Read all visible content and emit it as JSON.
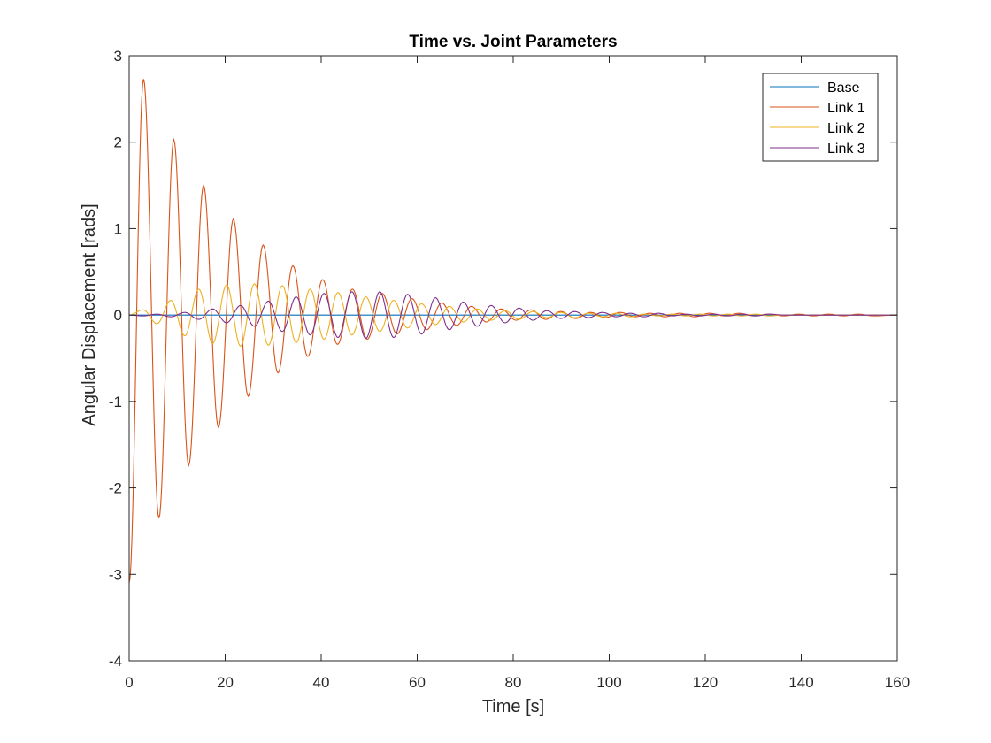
{
  "chart_data": {
    "type": "line",
    "title": "Time vs. Joint Parameters",
    "xlabel": "Time [s]",
    "ylabel": "Angular Displacement [rads]",
    "xlim": [
      0,
      160
    ],
    "ylim": [
      -4,
      3
    ],
    "xticks": [
      0,
      20,
      40,
      60,
      80,
      100,
      120,
      140,
      160
    ],
    "yticks": [
      -4,
      -3,
      -2,
      -1,
      0,
      1,
      2,
      3
    ],
    "grid": false,
    "legend_position": "top-right",
    "series": [
      {
        "name": "Base",
        "color": "#0072BD",
        "x": [
          0,
          160
        ],
        "y": [
          0,
          0
        ]
      },
      {
        "name": "Link 1",
        "color": "#D95319",
        "x": [
          0,
          3.0,
          6.2,
          9.3,
          12.4,
          15.5,
          18.6,
          21.7,
          24.8,
          27.9,
          31.0,
          34.1,
          37.2,
          40.3,
          43.4,
          46.5,
          49.6,
          52.7,
          55.8,
          58.9,
          62.0,
          65.1,
          68.2,
          71.3,
          74.4,
          77.5,
          80.6,
          83.7,
          86.8,
          89.9,
          93.0,
          96.1,
          99.2,
          102.3,
          105.4,
          108.5,
          111.6,
          114.7,
          117.8,
          120.9,
          124.0,
          127.1,
          130.2,
          133.3,
          136.4,
          139.5,
          142.6,
          145.7,
          148.8,
          151.9,
          155.0,
          160.0
        ],
        "y": [
          -3.1,
          2.73,
          -2.35,
          2.03,
          -1.74,
          1.5,
          -1.3,
          1.11,
          -0.94,
          0.81,
          -0.67,
          0.57,
          -0.48,
          0.41,
          -0.34,
          0.3,
          -0.28,
          0.25,
          -0.22,
          0.19,
          -0.17,
          0.14,
          -0.12,
          0.1,
          -0.08,
          0.07,
          -0.06,
          0.06,
          -0.05,
          0.04,
          -0.04,
          0.03,
          -0.03,
          0.03,
          -0.02,
          0.02,
          -0.02,
          0.02,
          -0.02,
          0.02,
          -0.01,
          0.02,
          -0.01,
          0.01,
          -0.01,
          0.01,
          -0.01,
          0.01,
          -0.01,
          0.01,
          -0.01,
          0.0
        ]
      },
      {
        "name": "Link 2",
        "color": "#EDB120",
        "x": [
          0,
          2.9,
          5.8,
          8.7,
          11.6,
          14.5,
          17.4,
          20.3,
          23.2,
          26.1,
          29.0,
          31.9,
          34.8,
          37.7,
          40.6,
          43.5,
          46.4,
          49.3,
          52.2,
          55.1,
          58.0,
          60.9,
          63.8,
          66.7,
          69.6,
          72.5,
          75.4,
          78.3,
          81.2,
          84.1,
          87.0,
          89.9,
          92.8,
          95.7,
          98.6,
          101.5,
          104.4,
          107.3,
          110.2,
          113.1,
          116.0,
          118.9,
          121.8,
          124.7,
          127.6,
          130.5,
          133.4,
          136.3,
          139.2,
          142.1,
          145.0,
          147.9,
          150.8,
          153.7,
          160.0
        ],
        "y": [
          0,
          0.06,
          -0.1,
          0.17,
          -0.24,
          0.3,
          -0.33,
          0.35,
          -0.36,
          0.36,
          -0.35,
          0.34,
          -0.32,
          0.3,
          -0.28,
          0.26,
          -0.23,
          0.21,
          -0.19,
          0.17,
          -0.15,
          0.13,
          -0.11,
          0.1,
          -0.08,
          0.07,
          -0.06,
          0.05,
          -0.05,
          0.04,
          -0.03,
          0.03,
          -0.03,
          0.02,
          -0.02,
          0.02,
          -0.02,
          0.01,
          -0.01,
          0.01,
          -0.01,
          0.01,
          -0.01,
          0.01,
          -0.01,
          0.01,
          -0.01,
          0.0,
          0.0,
          0.0,
          0.0,
          0.0,
          0.0,
          0.0,
          0.0
        ]
      },
      {
        "name": "Link 3",
        "color": "#7E2F8E",
        "x": [
          0,
          2.9,
          5.8,
          8.7,
          11.6,
          14.5,
          17.4,
          20.3,
          23.2,
          26.1,
          29.0,
          31.9,
          34.8,
          37.7,
          40.6,
          43.5,
          46.4,
          49.3,
          52.2,
          55.1,
          58.0,
          60.9,
          63.8,
          66.7,
          69.6,
          72.5,
          75.4,
          78.3,
          81.2,
          84.1,
          87.0,
          89.9,
          92.8,
          95.7,
          98.6,
          101.5,
          104.4,
          107.3,
          110.2,
          113.1,
          116.0,
          118.9,
          121.8,
          124.7,
          127.6,
          130.5,
          133.4,
          136.3,
          139.2,
          142.1,
          145.0,
          147.9,
          150.8,
          153.7,
          160.0
        ],
        "y": [
          0,
          -0.01,
          0.01,
          -0.02,
          0.03,
          -0.05,
          0.07,
          -0.09,
          0.11,
          -0.13,
          0.16,
          -0.19,
          0.21,
          -0.23,
          0.25,
          -0.26,
          0.27,
          -0.27,
          0.27,
          -0.26,
          0.24,
          -0.22,
          0.2,
          -0.17,
          0.15,
          -0.13,
          0.11,
          -0.09,
          0.08,
          -0.06,
          0.05,
          -0.04,
          0.04,
          -0.03,
          0.03,
          -0.02,
          0.02,
          -0.02,
          0.02,
          -0.01,
          0.01,
          -0.01,
          0.01,
          -0.01,
          0.01,
          -0.01,
          0.01,
          0.0,
          0.0,
          0.0,
          0.0,
          0.0,
          0.0,
          0.0,
          0.0
        ]
      }
    ]
  }
}
